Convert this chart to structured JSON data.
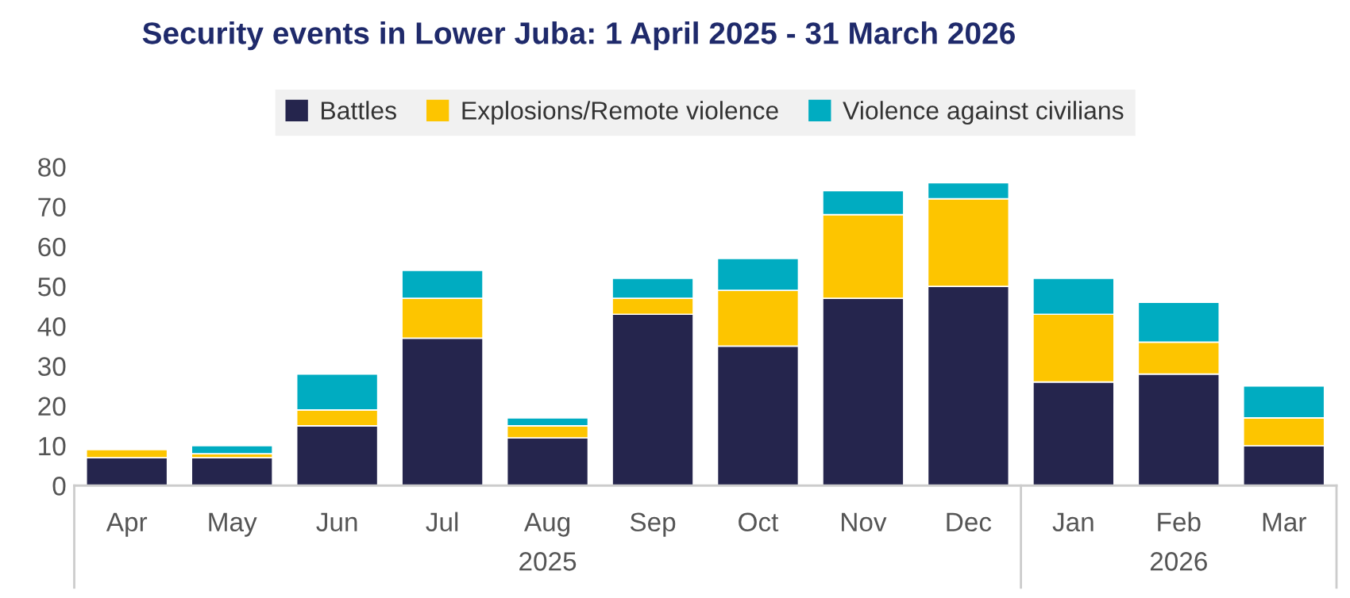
{
  "chart_data": {
    "type": "bar",
    "title": "Security events in Lower Juba: 1 April 2025 - 31 March 2026",
    "categories": [
      "Apr",
      "May",
      "Jun",
      "Jul",
      "Aug",
      "Sep",
      "Oct",
      "Nov",
      "Dec",
      "Jan",
      "Feb",
      "Mar"
    ],
    "stacked": true,
    "series": [
      {
        "name": "Battles",
        "color": "#25254d",
        "values": [
          7,
          7,
          15,
          37,
          12,
          43,
          35,
          47,
          50,
          26,
          28,
          10
        ]
      },
      {
        "name": "Explosions/Remote violence",
        "color": "#fdc500",
        "values": [
          2,
          1,
          4,
          10,
          3,
          4,
          14,
          21,
          22,
          17,
          8,
          7
        ]
      },
      {
        "name": "Violence against civilians",
        "color": "#00acc1",
        "values": [
          0,
          2,
          9,
          7,
          2,
          5,
          8,
          6,
          4,
          9,
          10,
          8
        ]
      }
    ],
    "ylim": [
      0,
      80
    ],
    "yticks": [
      0,
      10,
      20,
      30,
      40,
      50,
      60,
      70,
      80
    ],
    "grid": false,
    "legend": "top",
    "annotations": [
      "2025",
      "2026"
    ]
  }
}
